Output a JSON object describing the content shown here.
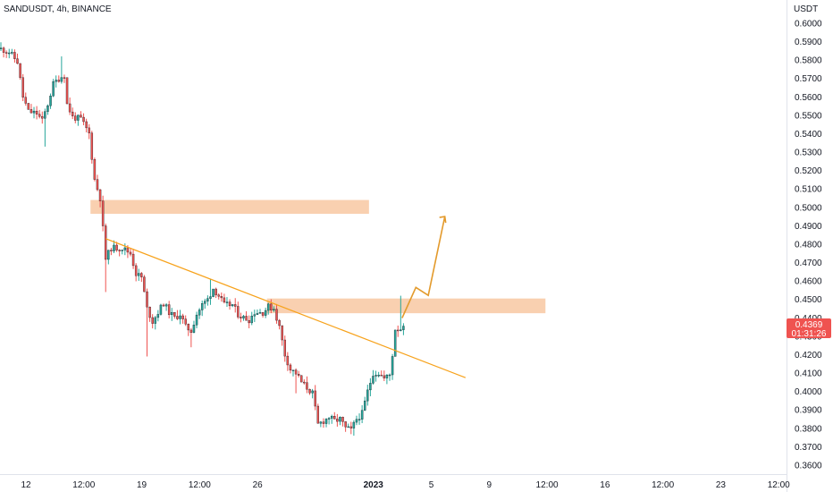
{
  "header": {
    "symbol_label": "SANDUSDT, 4h, BINANCE"
  },
  "price_axis": {
    "currency": "USDT"
  },
  "price_badge": {
    "price": "0.4369",
    "countdown": "01:31:26",
    "color": "#ef5350"
  },
  "colors": {
    "bull": "#26a69a",
    "bear": "#ef5350",
    "wick": "#131722",
    "zone": "#f9d0b0",
    "trendline": "#f7a21b",
    "projection": "#e39a2c",
    "background": "#ffffff"
  },
  "chart_data": {
    "type": "candlestick",
    "title": "",
    "xlabel": "",
    "ylabel": "",
    "ylim": [
      0.3525,
      0.6115
    ],
    "y_ticks": [
      "0.6000",
      "0.5900",
      "0.5800",
      "0.5700",
      "0.5600",
      "0.5500",
      "0.5400",
      "0.5300",
      "0.5200",
      "0.5100",
      "0.5000",
      "0.4900",
      "0.4800",
      "0.4700",
      "0.4600",
      "0.4500",
      "0.4400",
      "0.4300",
      "0.4200",
      "0.4100",
      "0.4000",
      "0.3900",
      "0.3800",
      "0.3700",
      "0.3600"
    ],
    "x_ticks": [
      {
        "label": "12",
        "index": 0
      },
      {
        "label": "12:00",
        "index": 21
      },
      {
        "label": "19",
        "index": 42
      },
      {
        "label": "12:00",
        "index": 63
      },
      {
        "label": "26",
        "index": 84
      },
      {
        "label": "2023",
        "index": 126
      },
      {
        "label": "5",
        "index": 147
      },
      {
        "label": "9",
        "index": 168
      },
      {
        "label": "12:00",
        "index": 189
      },
      {
        "label": "16",
        "index": 210
      },
      {
        "label": "12:00",
        "index": 231
      },
      {
        "label": "23",
        "index": 252
      },
      {
        "label": "12:00",
        "index": 273
      }
    ],
    "candle_interval": "4h",
    "candles": [],
    "zones": [
      {
        "name": "resistance-zone-upper",
        "start_index": 32.5,
        "end_index": 133.5,
        "low": 0.4965,
        "high": 0.504
      },
      {
        "name": "resistance-zone-lower",
        "start_index": 96.5,
        "end_index": 197.5,
        "low": 0.4425,
        "high": 0.4505
      }
    ],
    "trendline": {
      "start": {
        "index": 38,
        "price": 0.483
      },
      "end": {
        "index": 168.5,
        "price": 0.4075
      }
    },
    "projection": [
      {
        "index": 145.5,
        "price": 0.4399
      },
      {
        "index": 150.5,
        "price": 0.4565
      },
      {
        "index": 155,
        "price": 0.4522
      },
      {
        "index": 161,
        "price": 0.495
      }
    ]
  }
}
